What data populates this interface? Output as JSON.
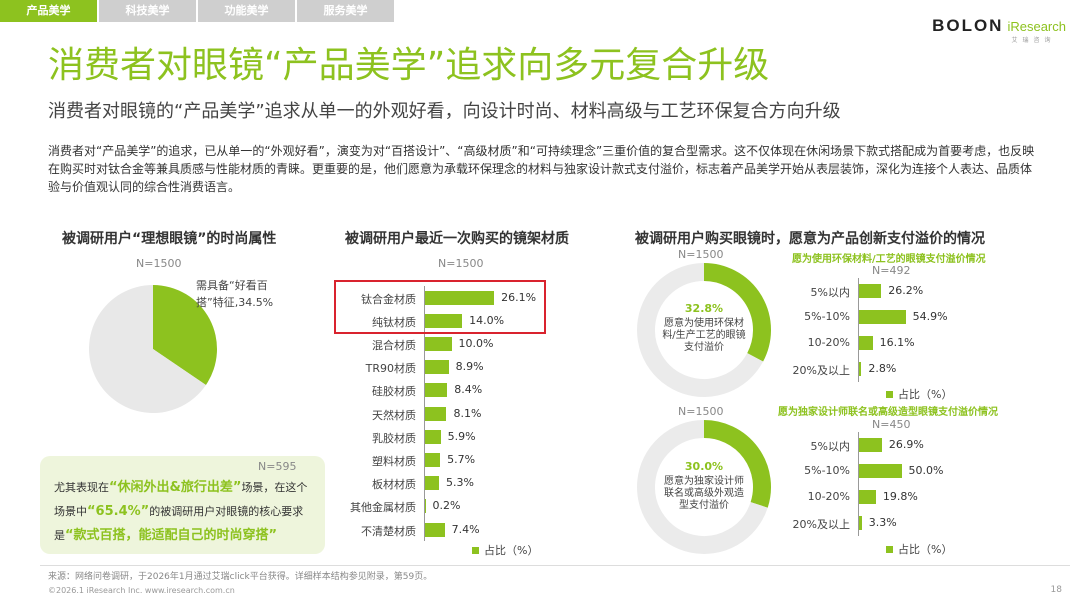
{
  "tabs": [
    {
      "label": "产品美学",
      "active": true
    },
    {
      "label": "科技美学",
      "active": false
    },
    {
      "label": "功能美学",
      "active": false
    },
    {
      "label": "服务美学",
      "active": false
    }
  ],
  "logo": {
    "brand": "BOLON",
    "partner": "iResearch",
    "partner_sub": "艾瑞咨询"
  },
  "title": "消费者对眼镜“产品美学”追求向多元复合升级",
  "subtitle": "消费者对眼镜的“产品美学”追求从单一的外观好看，向设计时尚、材料高级与工艺环保复合方向升级",
  "intro": "消费者对“产品美学”的追求，已从单一的“外观好看”，演变为对“百搭设计”、“高级材质”和“可持续理念”三重价值的复合型需求。这不仅体现在休闲场景下款式搭配成为首要考虑，也反映在购买时对钛合金等兼具质感与性能材质的青睐。更重要的是，他们愿意为承载环保理念的材料与独家设计款式支付溢价，标志着产品美学开始从表层装饰，深化为连接个人表达、品质体验与价值观认同的综合性消费语言。",
  "section1": {
    "title": "被调研用户“理想眼镜”的时尚属性",
    "n": "N=1500",
    "pie_label": "需具备“好看百搭”特征,34.5%",
    "note_n": "N=595",
    "note": {
      "p1": "尤其表现在",
      "h1": "“休闲外出&旅行出差”",
      "p2": "场景，在这个场景中",
      "h2": "“65.4%”",
      "p3": "的被调研用户对眼镜的核心要求是",
      "h3": "“款式百搭，能适配自己的时尚穿搭”"
    }
  },
  "section2": {
    "title": "被调研用户最近一次购买的镜架材质",
    "n": "N=1500",
    "legend": "占比（%）"
  },
  "section3": {
    "title": "被调研用户购买眼镜时，愿意为产品创新支付溢价的情况",
    "donut1": {
      "n": "N=1500",
      "pct": "32.8%",
      "text": "愿意为使用环保材料/生产工艺的眼镜支付溢价"
    },
    "donut2": {
      "n": "N=1500",
      "pct": "30.0%",
      "text": "愿意为独家设计师联名或高级外观造型支付溢价"
    },
    "sub1": {
      "title": "愿为使用环保材料/工艺的眼镜支付溢价情况",
      "n": "N=492"
    },
    "sub2": {
      "title": "愿为独家设计师联名或高级造型眼镜支付溢价情况",
      "n": "N=450"
    },
    "legend1": "占比（%）",
    "legend2": "占比（%）"
  },
  "footer": {
    "source": "来源：网络问卷调研，于2026年1月通过艾瑞click平台获得。详细样本结构参见附录，第59页。",
    "copyright": "©2026.1 iResearch Inc. www.iresearch.com.cn",
    "page": "18"
  },
  "colors": {
    "accent": "#8dc21f",
    "highlight_border": "#d9232e",
    "pie_rest": "#e8e8e8",
    "donut_rest": "#ebebeb"
  },
  "chart_data": [
    {
      "type": "pie",
      "title": "被调研用户“理想眼镜”的时尚属性",
      "slices": [
        {
          "label": "需具备“好看百搭”特征",
          "value": 34.5
        },
        {
          "label": "",
          "value": 65.5
        }
      ]
    },
    {
      "type": "bar",
      "title": "被调研用户最近一次购买的镜架材质",
      "categories": [
        "钛合金材质",
        "纯钛材质",
        "混合材质",
        "TR90材质",
        "硅胶材质",
        "天然材质",
        "乳胶材质",
        "塑料材质",
        "板材材质",
        "其他金属材质",
        "不清楚材质"
      ],
      "values": [
        26.1,
        14.0,
        10.0,
        8.9,
        8.4,
        8.1,
        5.9,
        5.7,
        5.3,
        0.2,
        7.4
      ],
      "labels": [
        "26.1%",
        "14.0%",
        "10.0%",
        "8.9%",
        "8.4%",
        "8.1%",
        "5.9%",
        "5.7%",
        "5.3%",
        "0.2%",
        "7.4%"
      ],
      "unit": "占比（%）"
    },
    {
      "type": "pie",
      "title": "愿意为使用环保材料/生产工艺的眼镜支付溢价",
      "slices": [
        {
          "label": "愿意",
          "value": 32.8
        },
        {
          "label": "",
          "value": 67.2
        }
      ]
    },
    {
      "type": "bar",
      "title": "愿为使用环保材料/工艺的眼镜支付溢价情况",
      "categories": [
        "5%以内",
        "5%-10%",
        "10-20%",
        "20%及以上"
      ],
      "values": [
        26.2,
        54.9,
        16.1,
        2.8
      ],
      "labels": [
        "26.2%",
        "54.9%",
        "16.1%",
        "2.8%"
      ]
    },
    {
      "type": "pie",
      "title": "愿意为独家设计师联名或高级外观造型支付溢价",
      "slices": [
        {
          "label": "愿意",
          "value": 30.0
        },
        {
          "label": "",
          "value": 70.0
        }
      ]
    },
    {
      "type": "bar",
      "title": "愿为独家设计师联名或高级造型眼镜支付溢价情况",
      "categories": [
        "5%以内",
        "5%-10%",
        "10-20%",
        "20%及以上"
      ],
      "values": [
        26.9,
        50.0,
        19.8,
        3.3
      ],
      "labels": [
        "26.9%",
        "50.0%",
        "19.8%",
        "3.3%"
      ]
    }
  ]
}
